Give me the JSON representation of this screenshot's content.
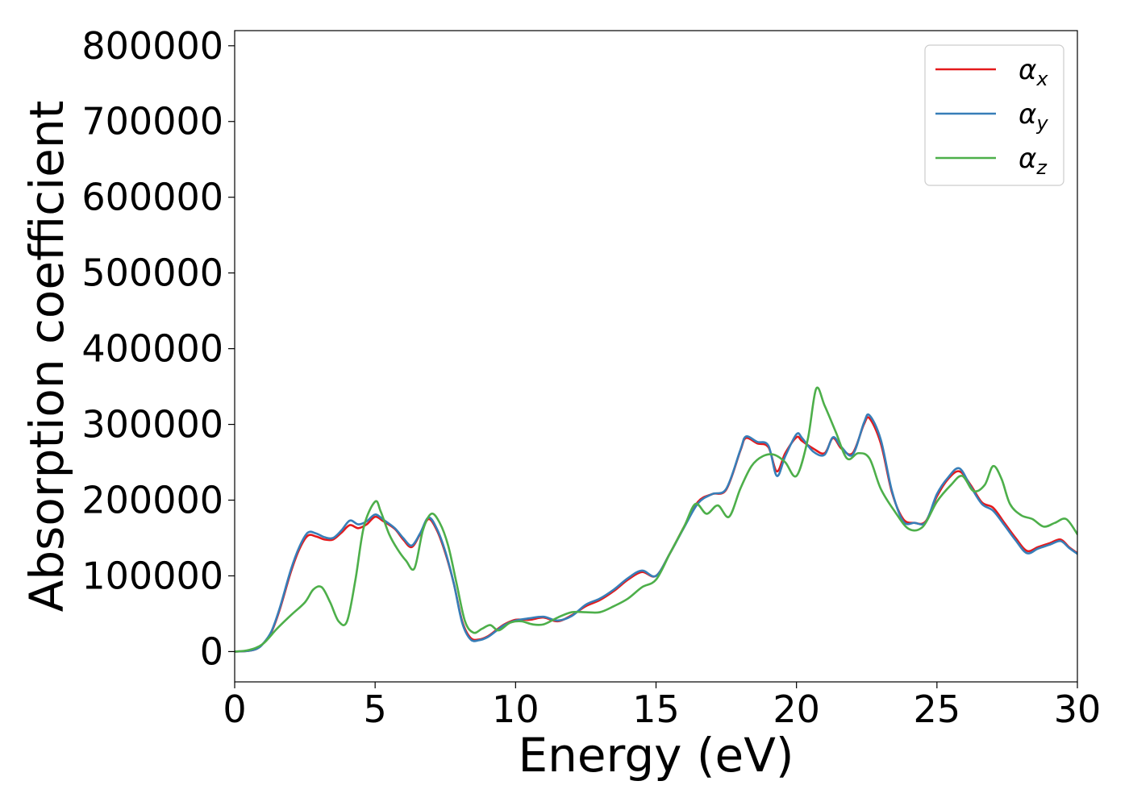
{
  "chart_data": {
    "type": "line",
    "xlabel": "Energy (eV)",
    "ylabel": "Absorption coefficient",
    "xlim": [
      0,
      30
    ],
    "ylim": [
      -40000,
      820000
    ],
    "xticks": [
      0,
      5,
      10,
      15,
      20,
      25,
      30
    ],
    "yticks": [
      0,
      100000,
      200000,
      300000,
      400000,
      500000,
      600000,
      700000,
      800000
    ],
    "grid": false,
    "legend_position": "top-right",
    "series": [
      {
        "name": "αx",
        "name_base": "α",
        "name_sub": "x",
        "color": "#e41a1c",
        "x": [
          0,
          0.5,
          0.8,
          1.0,
          1.3,
          1.6,
          2.0,
          2.3,
          2.6,
          2.9,
          3.2,
          3.5,
          3.8,
          4.1,
          4.4,
          4.7,
          5.0,
          5.3,
          5.7,
          6.0,
          6.3,
          6.6,
          6.9,
          7.2,
          7.5,
          7.8,
          8.1,
          8.4,
          8.7,
          9.0,
          9.3,
          9.6,
          10.0,
          10.5,
          11.0,
          11.5,
          12.0,
          12.5,
          13.0,
          13.5,
          14.0,
          14.5,
          15.0,
          15.5,
          16.0,
          16.5,
          17.0,
          17.5,
          18.0,
          18.2,
          18.6,
          19.0,
          19.3,
          19.6,
          20.0,
          20.2,
          20.6,
          21.0,
          21.3,
          21.6,
          22.0,
          22.4,
          22.6,
          23.0,
          23.4,
          23.8,
          24.2,
          24.6,
          25.0,
          25.4,
          25.8,
          26.2,
          26.6,
          27.0,
          27.4,
          27.8,
          28.2,
          28.6,
          29.0,
          29.4,
          29.7,
          30.0
        ],
        "y": [
          0,
          1000,
          4000,
          10000,
          25000,
          55000,
          105000,
          135000,
          153000,
          152000,
          148000,
          148000,
          157000,
          167000,
          163000,
          168000,
          178000,
          172000,
          162000,
          148000,
          138000,
          155000,
          175000,
          160000,
          130000,
          90000,
          40000,
          18000,
          16000,
          20000,
          28000,
          36000,
          42000,
          42000,
          45000,
          40000,
          48000,
          60000,
          68000,
          80000,
          95000,
          105000,
          100000,
          130000,
          165000,
          198000,
          208000,
          214000,
          265000,
          282000,
          275000,
          270000,
          238000,
          262000,
          283000,
          278000,
          268000,
          262000,
          282000,
          268000,
          262000,
          300000,
          308000,
          275000,
          210000,
          175000,
          170000,
          172000,
          205000,
          228000,
          238000,
          220000,
          197000,
          190000,
          170000,
          150000,
          133000,
          138000,
          143000,
          148000,
          138000,
          130000
        ]
      },
      {
        "name": "αy",
        "name_base": "α",
        "name_sub": "y",
        "color": "#377eb8",
        "x": [
          0,
          0.5,
          0.8,
          1.0,
          1.3,
          1.6,
          2.0,
          2.3,
          2.6,
          2.9,
          3.2,
          3.5,
          3.8,
          4.1,
          4.4,
          4.7,
          5.0,
          5.3,
          5.7,
          6.0,
          6.3,
          6.6,
          6.9,
          7.2,
          7.5,
          7.8,
          8.1,
          8.4,
          8.7,
          9.0,
          9.3,
          9.6,
          10.0,
          10.5,
          11.0,
          11.5,
          12.0,
          12.5,
          13.0,
          13.5,
          14.0,
          14.5,
          15.0,
          15.5,
          16.0,
          16.5,
          17.0,
          17.5,
          18.0,
          18.2,
          18.6,
          19.0,
          19.3,
          19.6,
          20.0,
          20.2,
          20.6,
          21.0,
          21.3,
          21.6,
          22.0,
          22.4,
          22.6,
          23.0,
          23.4,
          23.8,
          24.2,
          24.6,
          25.0,
          25.4,
          25.8,
          26.2,
          26.6,
          27.0,
          27.4,
          27.8,
          28.2,
          28.6,
          29.0,
          29.4,
          29.7,
          30.0
        ],
        "y": [
          0,
          1000,
          4000,
          10000,
          26000,
          57000,
          108000,
          138000,
          157000,
          156000,
          151000,
          150000,
          160000,
          173000,
          168000,
          172000,
          181000,
          174000,
          163000,
          150000,
          140000,
          156000,
          177000,
          162000,
          132000,
          90000,
          38000,
          16000,
          15000,
          19000,
          27000,
          35000,
          41000,
          44000,
          46000,
          41000,
          47000,
          62000,
          70000,
          82000,
          97000,
          107000,
          100000,
          130000,
          164000,
          196000,
          208000,
          215000,
          266000,
          284000,
          277000,
          272000,
          232000,
          258000,
          287000,
          282000,
          264000,
          260000,
          283000,
          270000,
          260000,
          302000,
          312000,
          280000,
          212000,
          172000,
          170000,
          171000,
          208000,
          230000,
          242000,
          218000,
          195000,
          186000,
          167000,
          147000,
          130000,
          136000,
          141000,
          146000,
          137000,
          129000
        ]
      },
      {
        "name": "αz",
        "name_base": "α",
        "name_sub": "z",
        "color": "#4daf4a",
        "x": [
          0,
          0.5,
          1.0,
          1.5,
          2.0,
          2.5,
          2.8,
          3.1,
          3.4,
          3.7,
          4.0,
          4.3,
          4.6,
          5.0,
          5.2,
          5.5,
          5.8,
          6.1,
          6.4,
          6.7,
          7.0,
          7.3,
          7.6,
          7.9,
          8.2,
          8.5,
          8.8,
          9.1,
          9.4,
          9.8,
          10.2,
          10.6,
          11.0,
          11.5,
          12.0,
          12.5,
          13.0,
          13.5,
          14.0,
          14.5,
          15.0,
          15.5,
          16.0,
          16.4,
          16.8,
          17.2,
          17.6,
          18.0,
          18.4,
          18.8,
          19.2,
          19.6,
          20.0,
          20.4,
          20.7,
          21.0,
          21.4,
          21.8,
          22.2,
          22.6,
          23.0,
          23.5,
          24.0,
          24.5,
          25.0,
          25.5,
          25.9,
          26.3,
          26.7,
          27.0,
          27.3,
          27.6,
          28.0,
          28.4,
          28.8,
          29.2,
          29.6,
          30.0
        ],
        "y": [
          0,
          2000,
          10000,
          30000,
          48000,
          65000,
          82000,
          85000,
          65000,
          40000,
          40000,
          95000,
          165000,
          198000,
          185000,
          155000,
          135000,
          120000,
          110000,
          160000,
          182000,
          170000,
          140000,
          90000,
          40000,
          25000,
          30000,
          35000,
          28000,
          38000,
          40000,
          36000,
          36000,
          45000,
          52000,
          52000,
          52000,
          60000,
          70000,
          85000,
          95000,
          130000,
          165000,
          195000,
          182000,
          193000,
          178000,
          215000,
          245000,
          258000,
          260000,
          250000,
          232000,
          280000,
          347000,
          325000,
          290000,
          255000,
          262000,
          255000,
          215000,
          185000,
          162000,
          165000,
          198000,
          220000,
          232000,
          212000,
          220000,
          245000,
          228000,
          195000,
          180000,
          175000,
          165000,
          170000,
          175000,
          155000
        ]
      }
    ]
  }
}
